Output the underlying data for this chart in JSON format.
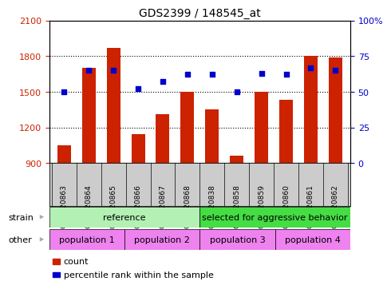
{
  "title": "GDS2399 / 148545_at",
  "categories": [
    "GSM120863",
    "GSM120864",
    "GSM120865",
    "GSM120866",
    "GSM120867",
    "GSM120868",
    "GSM120838",
    "GSM120858",
    "GSM120859",
    "GSM120860",
    "GSM120861",
    "GSM120862"
  ],
  "count_values": [
    1050,
    1700,
    1870,
    1140,
    1310,
    1500,
    1350,
    960,
    1500,
    1430,
    1800,
    1790
  ],
  "percentile_values": [
    50,
    65,
    65,
    52,
    57,
    62,
    62,
    50,
    63,
    62,
    67,
    65
  ],
  "bar_color": "#cc2200",
  "dot_color": "#0000cc",
  "ymin": 900,
  "ymax": 2100,
  "yticks": [
    900,
    1200,
    1500,
    1800,
    2100
  ],
  "y2min": 0,
  "y2max": 100,
  "y2ticks": [
    0,
    25,
    50,
    75,
    100
  ],
  "y2labels": [
    "0",
    "25",
    "50",
    "75",
    "100%"
  ],
  "grid_lines": [
    1200,
    1500,
    1800
  ],
  "strain_ref_color": "#b3f0b3",
  "strain_sel_color": "#44dd44",
  "pop_color": "#ee82ee",
  "tick_area_color": "#cccccc",
  "strain_label": "strain",
  "other_label": "other",
  "legend_count_label": "count",
  "legend_percentile_label": "percentile rank within the sample"
}
